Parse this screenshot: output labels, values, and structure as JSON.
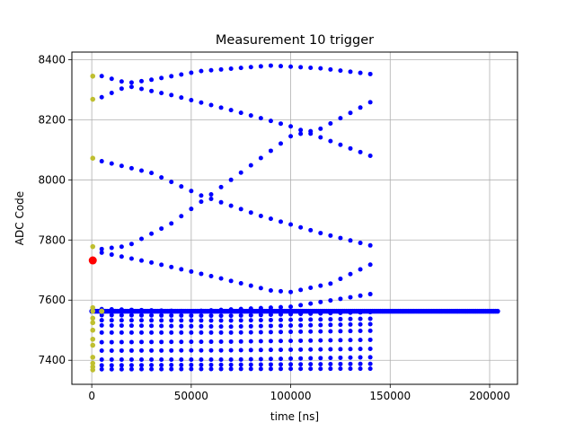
{
  "chart_data": {
    "type": "scatter",
    "title": "Measurement 10 trigger",
    "xlabel": "time [ns]",
    "ylabel": "ADC Code",
    "xlim": [
      -10000,
      214000
    ],
    "ylim": [
      7320,
      8425
    ],
    "xticks": [
      0,
      50000,
      100000,
      150000,
      200000
    ],
    "xtick_labels": [
      "0",
      "50000",
      "100000",
      "150000",
      "200000"
    ],
    "yticks": [
      7400,
      7600,
      7800,
      8000,
      8200,
      8400
    ],
    "ytick_labels": [
      "7400",
      "7600",
      "7800",
      "8000",
      "8200",
      "8400"
    ],
    "grid": true,
    "colors": {
      "samples": "#0000ff",
      "initial": "#bfbf30",
      "trigger": "#ff0000",
      "baseline": "#0000ff",
      "grid": "#b0b0b0"
    },
    "baseline": {
      "y": 7563,
      "x_start": 0,
      "x_end": 204000
    },
    "trigger_point": {
      "x": 500,
      "y": 7732
    },
    "initial_points": {
      "x": 500,
      "y": [
        8345,
        8268,
        8072,
        7778,
        7575,
        7563,
        7540,
        7525,
        7500,
        7470,
        7450,
        7410,
        7390,
        7378,
        7368
      ]
    },
    "series": [
      {
        "values_at_x": [
          [
            5000,
            8345
          ],
          [
            18000,
            8322
          ],
          [
            30000,
            8333
          ],
          [
            55000,
            8362
          ],
          [
            90000,
            8380
          ],
          [
            115000,
            8371
          ],
          [
            140000,
            8352
          ]
        ]
      },
      {
        "values_at_x": [
          [
            5000,
            8275
          ],
          [
            18000,
            8312
          ],
          [
            40000,
            8282
          ],
          [
            70000,
            8232
          ],
          [
            100000,
            8178
          ],
          [
            140000,
            8080
          ]
        ]
      },
      {
        "values_at_x": [
          [
            5000,
            8062
          ],
          [
            30000,
            8023
          ],
          [
            55000,
            7948
          ],
          [
            85000,
            7880
          ],
          [
            115000,
            7823
          ],
          [
            140000,
            7782
          ]
        ]
      },
      {
        "values_at_x": [
          [
            5000,
            7770
          ],
          [
            18000,
            7780
          ],
          [
            40000,
            7855
          ],
          [
            70000,
            8000
          ],
          [
            100000,
            8145
          ],
          [
            115000,
            8170
          ],
          [
            140000,
            8258
          ]
        ]
      },
      {
        "values_at_x": [
          [
            5000,
            7758
          ],
          [
            30000,
            7725
          ],
          [
            60000,
            7680
          ],
          [
            90000,
            7632
          ],
          [
            100000,
            7627
          ],
          [
            120000,
            7655
          ],
          [
            140000,
            7718
          ]
        ]
      },
      {
        "values_at_x": [
          [
            5000,
            7570
          ],
          [
            50000,
            7563
          ],
          [
            100000,
            7578
          ],
          [
            140000,
            7620
          ]
        ]
      },
      {
        "values_at_x": [
          [
            5000,
            7550
          ],
          [
            70000,
            7548
          ],
          [
            140000,
            7560
          ]
        ]
      },
      {
        "values_at_x": [
          [
            5000,
            7533
          ],
          [
            70000,
            7532
          ],
          [
            140000,
            7538
          ]
        ]
      },
      {
        "values_at_x": [
          [
            5000,
            7516
          ],
          [
            70000,
            7512
          ],
          [
            140000,
            7520
          ]
        ]
      },
      {
        "values_at_x": [
          [
            5000,
            7492
          ],
          [
            70000,
            7492
          ],
          [
            140000,
            7498
          ]
        ]
      },
      {
        "values_at_x": [
          [
            5000,
            7460
          ],
          [
            70000,
            7462
          ],
          [
            140000,
            7468
          ]
        ]
      },
      {
        "values_at_x": [
          [
            5000,
            7432
          ],
          [
            70000,
            7433
          ],
          [
            140000,
            7438
          ]
        ]
      },
      {
        "values_at_x": [
          [
            5000,
            7402
          ],
          [
            70000,
            7402
          ],
          [
            140000,
            7410
          ]
        ]
      },
      {
        "values_at_x": [
          [
            5000,
            7383
          ],
          [
            70000,
            7385
          ],
          [
            140000,
            7388
          ]
        ]
      },
      {
        "values_at_x": [
          [
            5000,
            7370
          ],
          [
            70000,
            7371
          ],
          [
            140000,
            7372
          ]
        ]
      }
    ]
  }
}
